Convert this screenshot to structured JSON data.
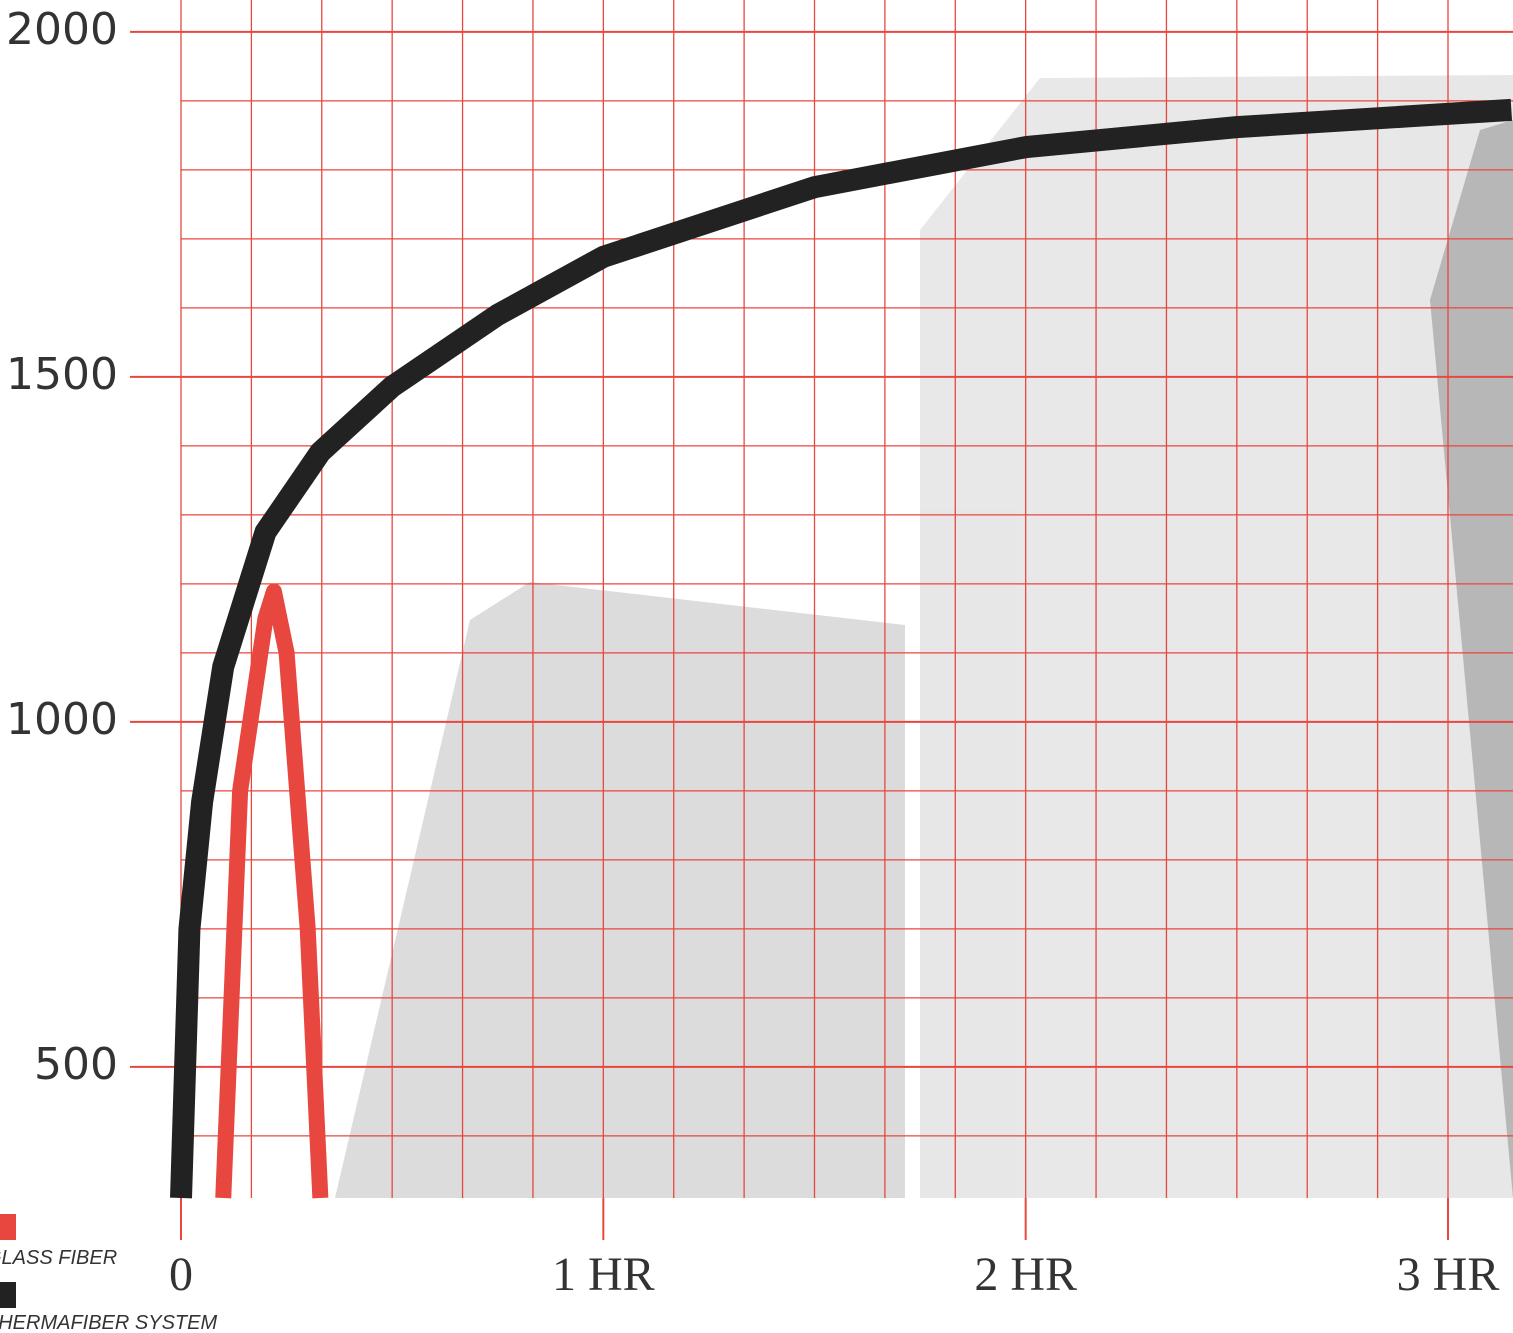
{
  "chart_data": {
    "type": "line",
    "series": [
      {
        "name": "GLASS FIBER",
        "color": "#e8473f",
        "x": [
          0.1,
          0.14,
          0.2,
          0.22,
          0.25,
          0.3,
          0.33
        ],
        "values": [
          310,
          900,
          1150,
          1189,
          1100,
          700,
          310
        ]
      },
      {
        "name": "THERMAFIBER SYSTEM",
        "color": "#222222",
        "x": [
          0,
          0.02,
          0.05,
          0.1,
          0.2,
          0.33,
          0.5,
          0.75,
          1.0,
          1.5,
          2.0,
          2.5,
          3.15
        ],
        "values": [
          310,
          700,
          884,
          1080,
          1275,
          1391,
          1486,
          1590,
          1674,
          1775,
          1833,
          1862,
          1887
        ]
      }
    ],
    "xlim": [
      0,
      3.15
    ],
    "ylim": [
      310,
      2043
    ],
    "xticks": [
      0,
      {
        "value": 1,
        "label": "1 HR"
      },
      {
        "value": 2,
        "label": "2 HR"
      },
      {
        "value": 3,
        "label": "3 HR"
      }
    ],
    "yticks": [
      500,
      1000,
      1500,
      2000
    ],
    "grid": true,
    "grid_color": "#e8473f"
  }
}
